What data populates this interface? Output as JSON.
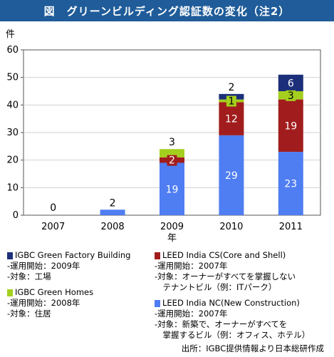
{
  "title": "図　グリーンビルディング認証数の変化（注2）",
  "chart_data": {
    "type": "bar",
    "stacked": true,
    "y_unit": "件",
    "xlabel": "年",
    "ylim": [
      0,
      60
    ],
    "y_ticks": [
      0,
      10,
      20,
      30,
      40,
      50,
      60
    ],
    "categories": [
      "2007",
      "2008",
      "2009",
      "2010",
      "2011"
    ],
    "series": [
      {
        "key": "nc",
        "color": "#4f7df2",
        "values": [
          0,
          2,
          19,
          29,
          23
        ]
      },
      {
        "key": "cs",
        "color": "#a11d1d",
        "values": [
          0,
          0,
          2,
          12,
          19
        ]
      },
      {
        "key": "homes",
        "color": "#a4cf1e",
        "values": [
          0,
          0,
          3,
          1,
          3
        ]
      },
      {
        "key": "factory",
        "color": "#1c2f7a",
        "values": [
          0,
          0,
          0,
          2,
          6
        ]
      }
    ],
    "data_labels": [
      {
        "category": "2007",
        "value": 0,
        "series": "total"
      },
      {
        "category": "2008",
        "value": 2,
        "series": "nc"
      },
      {
        "category": "2009",
        "value": 19,
        "series": "nc"
      },
      {
        "category": "2009",
        "value": 2,
        "series": "cs"
      },
      {
        "category": "2009",
        "value": 3,
        "series": "homes"
      },
      {
        "category": "2010",
        "value": 29,
        "series": "nc"
      },
      {
        "category": "2010",
        "value": 12,
        "series": "cs"
      },
      {
        "category": "2010",
        "value": 1,
        "series": "homes"
      },
      {
        "category": "2010",
        "value": 2,
        "series": "factory"
      },
      {
        "category": "2011",
        "value": 23,
        "series": "nc"
      },
      {
        "category": "2011",
        "value": 19,
        "series": "cs"
      },
      {
        "category": "2011",
        "value": 3,
        "series": "homes"
      },
      {
        "category": "2011",
        "value": 6,
        "series": "factory"
      }
    ]
  },
  "legend": {
    "factory": {
      "color": "#1c2f7a",
      "name": "IGBC Green Factory Building",
      "lines": [
        "-運用開始：2009年",
        "-対象：工場"
      ]
    },
    "homes": {
      "color": "#a4cf1e",
      "name": "IGBC Green Homes",
      "lines": [
        "-運用開始：2008年",
        "-対象：住居"
      ]
    },
    "cs": {
      "color": "#a11d1d",
      "name": "LEED India CS(Core and Shell)",
      "lines": [
        "-運用開始：2007年",
        "-対象：オーナーがすべてを掌握しない",
        "　テナントビル（例：ITパーク）"
      ]
    },
    "nc": {
      "color": "#4f7df2",
      "name": "LEED India NC(New Construction)",
      "lines": [
        "-運用開始：2007年",
        "-対象：新築で、オーナーがすべてを",
        "　掌握するビル（例：オフィス、ホテル）"
      ]
    }
  },
  "source": "出所：IGBC提供情報より日本総研作成"
}
